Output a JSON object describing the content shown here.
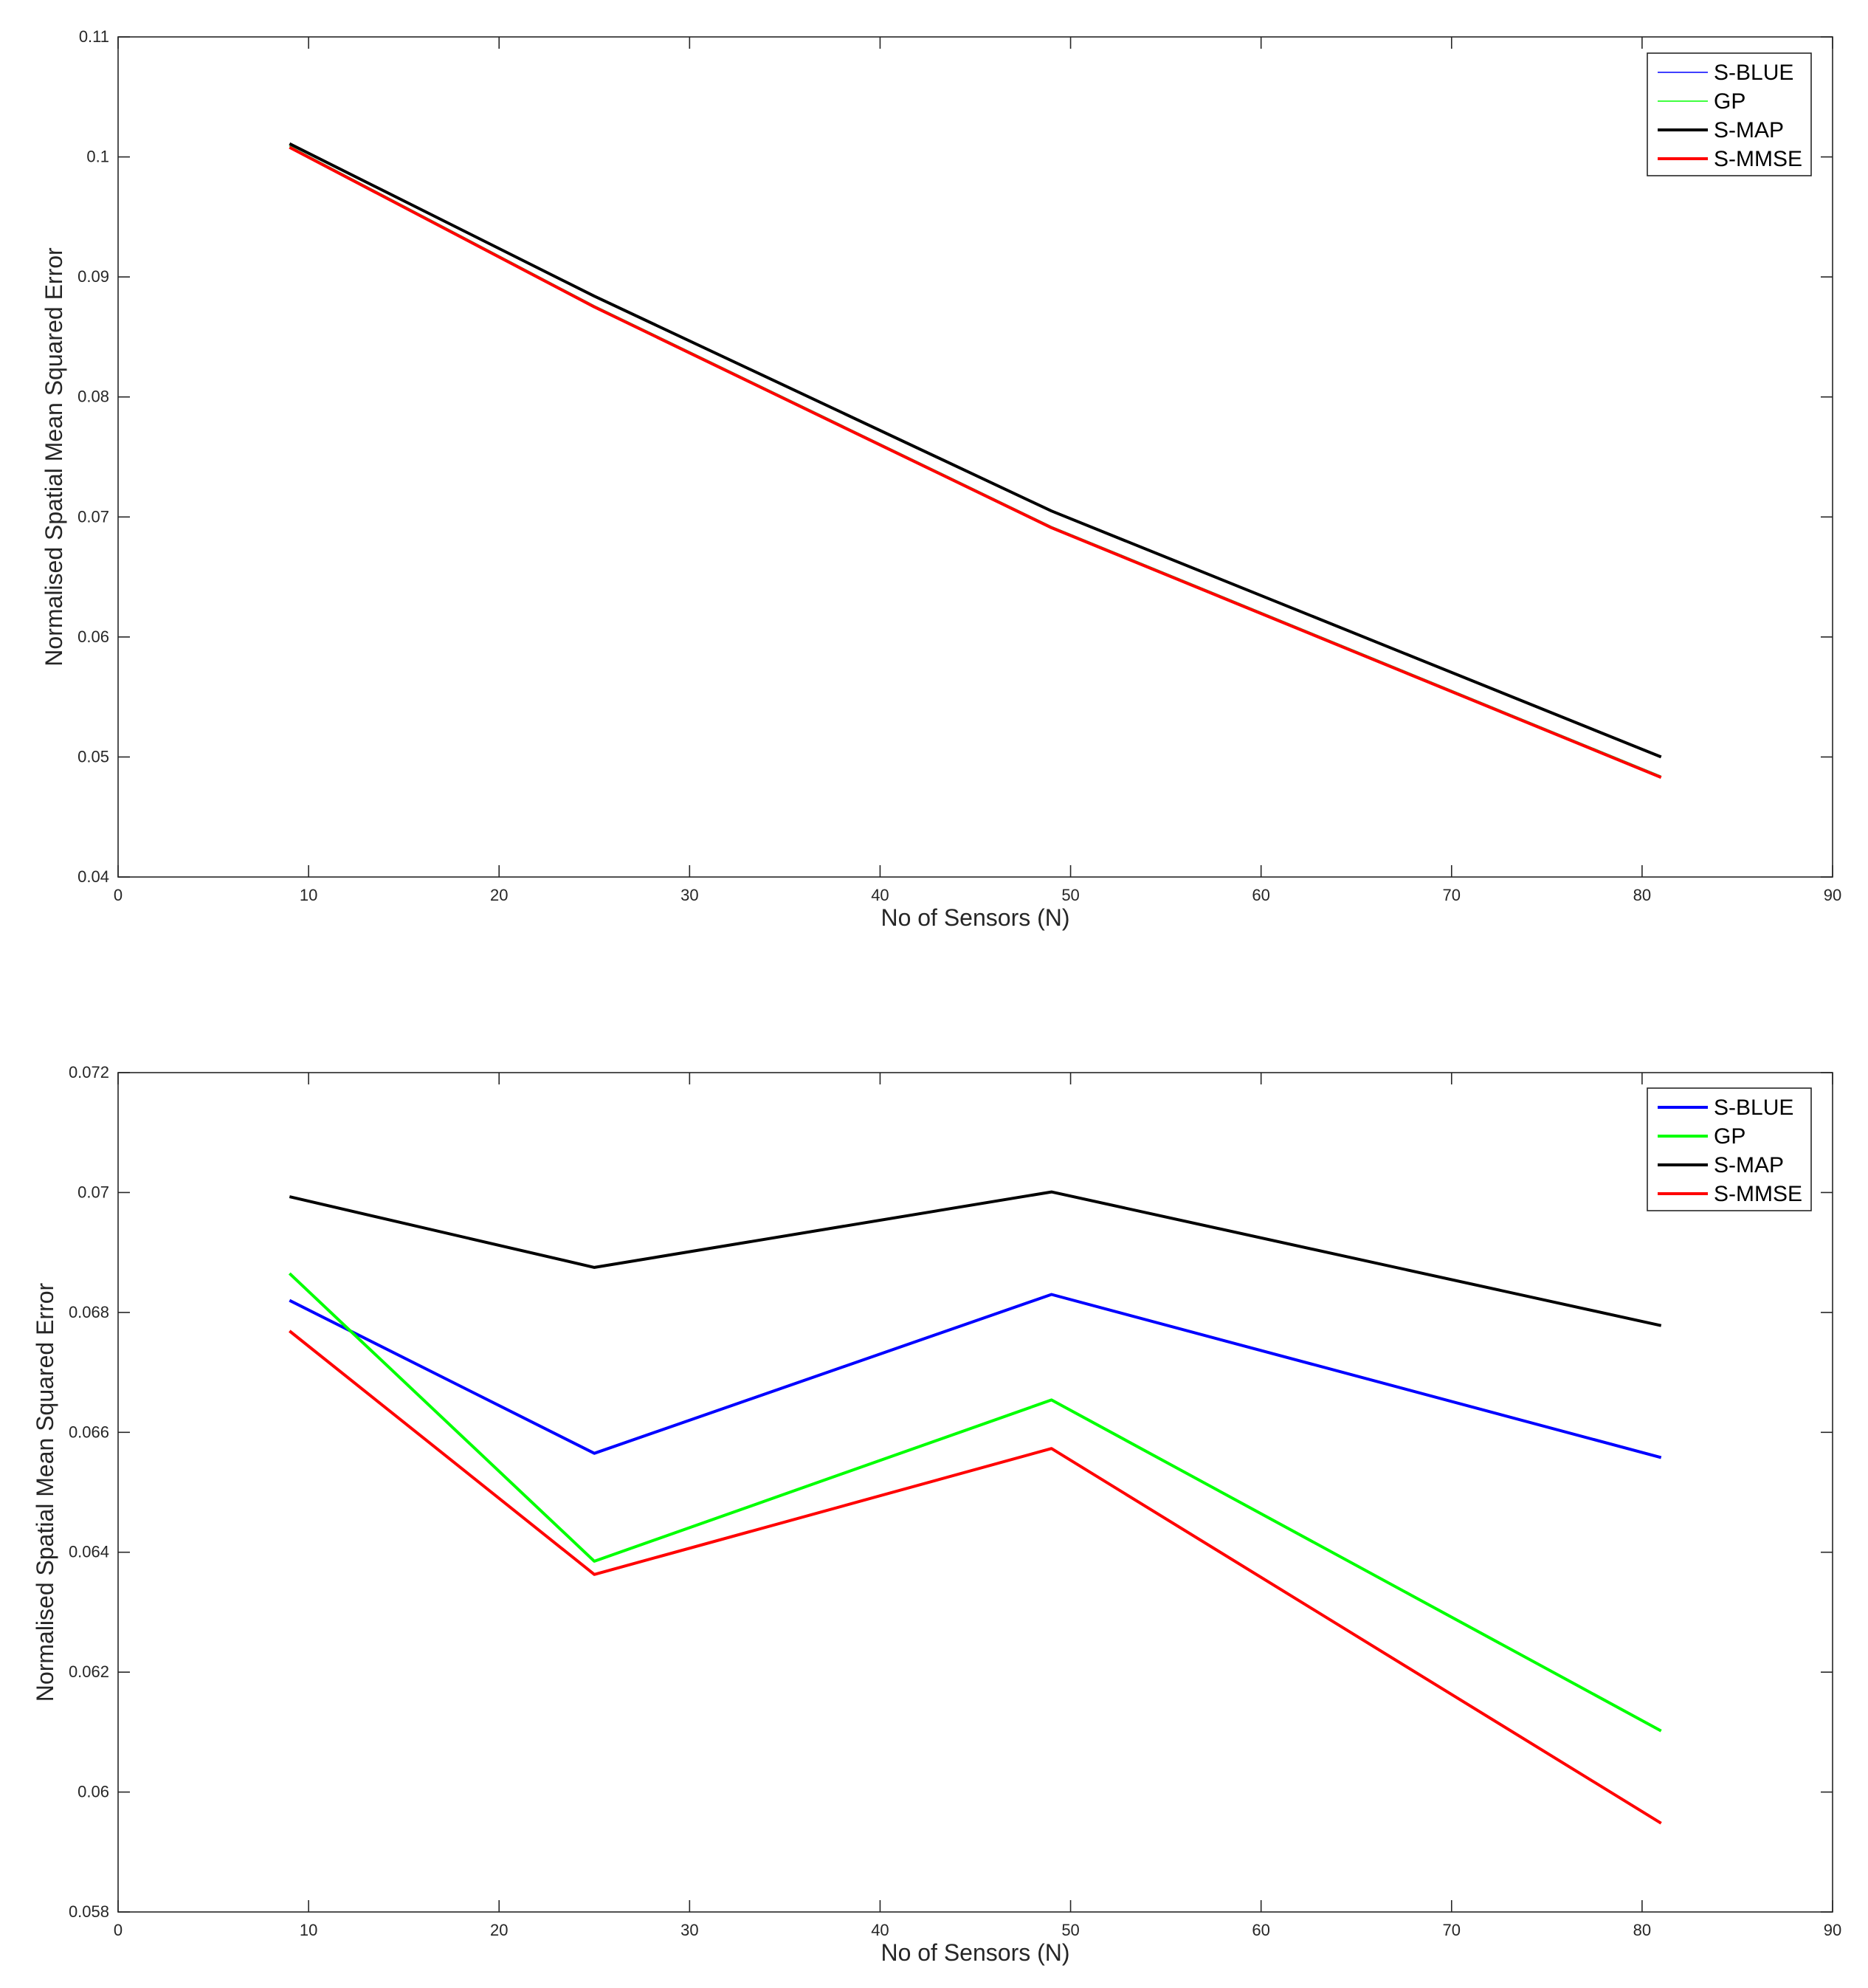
{
  "chart_data": [
    {
      "type": "line",
      "title": "",
      "xlabel": "No of Sensors (N)",
      "ylabel": "Normalised Spatial Mean Squared Error",
      "xlim": [
        0,
        90
      ],
      "ylim": [
        0.04,
        0.11
      ],
      "grid": false,
      "legend_position": "top-right",
      "x": [
        9,
        25,
        49,
        81
      ],
      "x_ticks": [
        0,
        10,
        20,
        30,
        40,
        50,
        60,
        70,
        80,
        90
      ],
      "x_tick_labels": [
        "0",
        "10",
        "20",
        "30",
        "40",
        "50",
        "60",
        "70",
        "80",
        "90"
      ],
      "y_ticks": [
        0.04,
        0.05,
        0.06,
        0.07,
        0.08,
        0.09,
        0.1,
        0.11
      ],
      "y_tick_labels": [
        "0.04",
        "0.05",
        "0.06",
        "0.07",
        "0.08",
        "0.09",
        "0.1",
        "0.11"
      ],
      "series": [
        {
          "name": "S-BLUE",
          "color": "#0000ff",
          "weight": "thin",
          "values": [
            0.1009,
            0.0876,
            0.0692,
            0.0484
          ]
        },
        {
          "name": "GP",
          "color": "#00ff00",
          "weight": "thin",
          "values": [
            0.1009,
            0.0876,
            0.0692,
            0.0484
          ]
        },
        {
          "name": "S-MAP",
          "color": "#000000",
          "weight": "thick",
          "values": [
            0.1011,
            0.0884,
            0.0705,
            0.05
          ]
        },
        {
          "name": "S-MMSE",
          "color": "#ff0000",
          "weight": "thick",
          "values": [
            0.1008,
            0.0875,
            0.0691,
            0.0483
          ]
        }
      ]
    },
    {
      "type": "line",
      "title": "",
      "xlabel": "No of Sensors (N)",
      "ylabel": "Normalised Spatial Mean Squared Error",
      "xlim": [
        0,
        90
      ],
      "ylim": [
        0.058,
        0.072
      ],
      "grid": false,
      "legend_position": "top-right",
      "x": [
        9,
        25,
        49,
        81
      ],
      "x_ticks": [
        0,
        10,
        20,
        30,
        40,
        50,
        60,
        70,
        80,
        90
      ],
      "x_tick_labels": [
        "0",
        "10",
        "20",
        "30",
        "40",
        "50",
        "60",
        "70",
        "80",
        "90"
      ],
      "y_ticks": [
        0.058,
        0.06,
        0.062,
        0.064,
        0.066,
        0.068,
        0.07,
        0.072
      ],
      "y_tick_labels": [
        "0.058",
        "0.06",
        "0.062",
        "0.064",
        "0.066",
        "0.068",
        "0.07",
        "0.072"
      ],
      "series": [
        {
          "name": "S-BLUE",
          "color": "#0000ff",
          "weight": "thick",
          "values": [
            0.0682,
            0.06565,
            0.0683,
            0.06558
          ]
        },
        {
          "name": "GP",
          "color": "#00ff00",
          "weight": "thick",
          "values": [
            0.06865,
            0.06385,
            0.06654,
            0.06102
          ]
        },
        {
          "name": "S-MAP",
          "color": "#000000",
          "weight": "thick",
          "values": [
            0.06993,
            0.06875,
            0.07001,
            0.06778
          ]
        },
        {
          "name": "S-MMSE",
          "color": "#ff0000",
          "weight": "thick",
          "values": [
            0.06769,
            0.06363,
            0.06573,
            0.05948
          ]
        }
      ]
    }
  ]
}
